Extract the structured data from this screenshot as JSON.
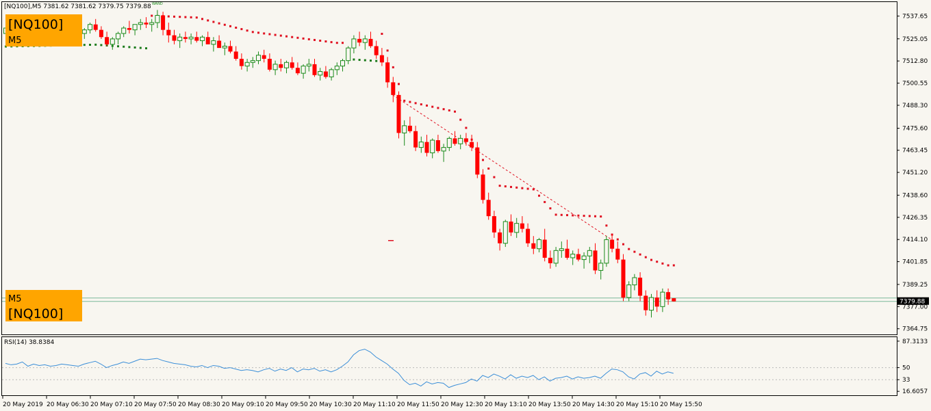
{
  "header": {
    "text": "[NQ100],M5  7381.62 7381.62 7379.75 7379.88",
    "badge": "WAND"
  },
  "labels": {
    "top_symbol": "[NQ100]",
    "top_timeframe": "M5",
    "bottom_timeframe": "M5",
    "bottom_symbol": "[NQ100]"
  },
  "colors": {
    "background": "#f8f6f0",
    "bull": "#1a8a1a",
    "bear": "#ff0000",
    "sar_bull": "#1a7a1a",
    "sar_bear": "#e01020",
    "rsi": "#3a8ed8",
    "label_bg": "#ffa500",
    "current_price_line": "#7ab89a"
  },
  "chart_data": [
    {
      "type": "candlestick",
      "symbol": "[NQ100]",
      "timeframe": "M5",
      "ohlc_header": {
        "open": 7381.62,
        "high": 7381.62,
        "low": 7379.75,
        "close": 7379.88
      },
      "current_price": 7379.88,
      "y_ticks": [
        7537.65,
        7525.05,
        7512.8,
        7500.55,
        7488.3,
        7475.6,
        7463.45,
        7451.2,
        7438.6,
        7426.35,
        7414.1,
        7401.85,
        7389.25,
        7377.0,
        7364.75
      ],
      "ylim": [
        7362,
        7545
      ],
      "x_tick_labels": [
        "20 May 2019",
        "20 May 06:30",
        "20 May 07:10",
        "20 May 07:50",
        "20 May 08:30",
        "20 May 09:10",
        "20 May 09:50",
        "20 May 10:30",
        "20 May 11:10",
        "20 May 11:50",
        "20 May 12:30",
        "20 May 13:10",
        "20 May 13:50",
        "20 May 14:30",
        "20 May 15:10",
        "20 May 15:50"
      ],
      "candles": [
        [
          7528,
          7533,
          7524,
          7531
        ],
        [
          7531,
          7534,
          7526,
          7529
        ],
        [
          7529,
          7532,
          7525,
          7530
        ],
        [
          7530,
          7533,
          7526,
          7528
        ],
        [
          7528,
          7531,
          7524,
          7530
        ],
        [
          7530,
          7534,
          7527,
          7532
        ],
        [
          7532,
          7535,
          7528,
          7529
        ],
        [
          7529,
          7532,
          7525,
          7531
        ],
        [
          7531,
          7534,
          7528,
          7533
        ],
        [
          7533,
          7535,
          7529,
          7530
        ],
        [
          7530,
          7532,
          7526,
          7528
        ],
        [
          7528,
          7531,
          7524,
          7529
        ],
        [
          7529,
          7532,
          7525,
          7527
        ],
        [
          7527,
          7530,
          7523,
          7528
        ],
        [
          7528,
          7531,
          7525,
          7530
        ],
        [
          7530,
          7534,
          7528,
          7533
        ],
        [
          7533,
          7536,
          7529,
          7530
        ],
        [
          7530,
          7532,
          7525,
          7526
        ],
        [
          7526,
          7529,
          7521,
          7522
        ],
        [
          7522,
          7526,
          7519,
          7525
        ],
        [
          7525,
          7529,
          7522,
          7528
        ],
        [
          7528,
          7532,
          7526,
          7531
        ],
        [
          7531,
          7535,
          7528,
          7530
        ],
        [
          7530,
          7533,
          7527,
          7533
        ],
        [
          7533,
          7536,
          7530,
          7534
        ],
        [
          7534,
          7537,
          7531,
          7533
        ],
        [
          7533,
          7536,
          7529,
          7534
        ],
        [
          7534,
          7541,
          7531,
          7538
        ],
        [
          7538,
          7540,
          7527,
          7530
        ],
        [
          7530,
          7534,
          7523,
          7527
        ],
        [
          7527,
          7530,
          7522,
          7524
        ],
        [
          7524,
          7528,
          7520,
          7526
        ],
        [
          7526,
          7529,
          7523,
          7525
        ],
        [
          7525,
          7528,
          7522,
          7526
        ],
        [
          7526,
          7529,
          7523,
          7524
        ],
        [
          7524,
          7527,
          7521,
          7526
        ],
        [
          7526,
          7529,
          7523,
          7522
        ],
        [
          7522,
          7526,
          7518,
          7524
        ],
        [
          7524,
          7527,
          7521,
          7520
        ],
        [
          7520,
          7523,
          7516,
          7521
        ],
        [
          7521,
          7524,
          7517,
          7518
        ],
        [
          7518,
          7521,
          7513,
          7514
        ],
        [
          7514,
          7517,
          7508,
          7510
        ],
        [
          7510,
          7514,
          7507,
          7512
        ],
        [
          7512,
          7515,
          7509,
          7513
        ],
        [
          7513,
          7518,
          7511,
          7516
        ],
        [
          7516,
          7519,
          7512,
          7514
        ],
        [
          7514,
          7517,
          7507,
          7508
        ],
        [
          7508,
          7513,
          7505,
          7511
        ],
        [
          7511,
          7514,
          7507,
          7509
        ],
        [
          7509,
          7513,
          7506,
          7512
        ],
        [
          7512,
          7515,
          7508,
          7509
        ],
        [
          7509,
          7512,
          7505,
          7506
        ],
        [
          7506,
          7511,
          7503,
          7510
        ],
        [
          7510,
          7514,
          7507,
          7511
        ],
        [
          7511,
          7514,
          7504,
          7505
        ],
        [
          7505,
          7509,
          7502,
          7507
        ],
        [
          7507,
          7510,
          7503,
          7504
        ],
        [
          7504,
          7509,
          7502,
          7508
        ],
        [
          7508,
          7512,
          7505,
          7510
        ],
        [
          7510,
          7514,
          7507,
          7513
        ],
        [
          7513,
          7521,
          7511,
          7520
        ],
        [
          7520,
          7527,
          7517,
          7525
        ],
        [
          7525,
          7529,
          7521,
          7523
        ],
        [
          7523,
          7527,
          7519,
          7525
        ],
        [
          7525,
          7529,
          7520,
          7521
        ],
        [
          7521,
          7524,
          7514,
          7516
        ],
        [
          7516,
          7520,
          7510,
          7512
        ],
        [
          7512,
          7515,
          7498,
          7501
        ],
        [
          7501,
          7504,
          7490,
          7494
        ],
        [
          7494,
          7496,
          7470,
          7473
        ],
        [
          7473,
          7480,
          7466,
          7477
        ],
        [
          7477,
          7482,
          7473,
          7474
        ],
        [
          7474,
          7477,
          7463,
          7465
        ],
        [
          7465,
          7471,
          7462,
          7468
        ],
        [
          7468,
          7472,
          7460,
          7462
        ],
        [
          7462,
          7470,
          7459,
          7469
        ],
        [
          7469,
          7472,
          7462,
          7463
        ],
        [
          7463,
          7467,
          7457,
          7465
        ],
        [
          7465,
          7471,
          7463,
          7470
        ],
        [
          7470,
          7474,
          7466,
          7467
        ],
        [
          7467,
          7472,
          7464,
          7470
        ],
        [
          7470,
          7473,
          7466,
          7468
        ],
        [
          7468,
          7472,
          7463,
          7465
        ],
        [
          7465,
          7468,
          7448,
          7450
        ],
        [
          7450,
          7453,
          7434,
          7436
        ],
        [
          7436,
          7440,
          7425,
          7427
        ],
        [
          7427,
          7430,
          7415,
          7418
        ],
        [
          7418,
          7420,
          7408,
          7412
        ],
        [
          7412,
          7425,
          7410,
          7424
        ],
        [
          7424,
          7428,
          7416,
          7418
        ],
        [
          7418,
          7426,
          7415,
          7423
        ],
        [
          7423,
          7427,
          7418,
          7420
        ],
        [
          7420,
          7423,
          7410,
          7412
        ],
        [
          7412,
          7416,
          7406,
          7409
        ],
        [
          7409,
          7415,
          7407,
          7414
        ],
        [
          7414,
          7420,
          7402,
          7404
        ],
        [
          7404,
          7408,
          7398,
          7401
        ],
        [
          7401,
          7410,
          7399,
          7408
        ],
        [
          7408,
          7413,
          7404,
          7409
        ],
        [
          7409,
          7414,
          7403,
          7404
        ],
        [
          7404,
          7408,
          7400,
          7406
        ],
        [
          7406,
          7409,
          7402,
          7403
        ],
        [
          7403,
          7407,
          7398,
          7405
        ],
        [
          7405,
          7410,
          7401,
          7408
        ],
        [
          7408,
          7412,
          7395,
          7397
        ],
        [
          7397,
          7403,
          7392,
          7401
        ],
        [
          7401,
          7416,
          7399,
          7414
        ],
        [
          7414,
          7417,
          7407,
          7409
        ],
        [
          7409,
          7413,
          7401,
          7403
        ],
        [
          7403,
          7406,
          7380,
          7382
        ],
        [
          7382,
          7391,
          7380,
          7389
        ],
        [
          7389,
          7395,
          7386,
          7393
        ],
        [
          7393,
          7396,
          7380,
          7383
        ],
        [
          7383,
          7386,
          7372,
          7375
        ],
        [
          7375,
          7384,
          7371,
          7382
        ],
        [
          7382,
          7386,
          7374,
          7377
        ],
        [
          7377,
          7387,
          7374,
          7385
        ],
        [
          7385,
          7387,
          7378,
          7381
        ],
        [
          7381.62,
          7381.62,
          7379.75,
          7379.88
        ]
      ],
      "parabolic_sar": [
        [
          0,
          7521,
          "bull"
        ],
        [
          16,
          7522,
          "bull"
        ],
        [
          25,
          7520,
          "bull"
        ],
        [
          26,
          7538,
          "bear"
        ],
        [
          34,
          7537,
          "bear"
        ],
        [
          44,
          7529,
          "bear"
        ],
        [
          59,
          7523,
          "bear"
        ],
        [
          61,
          7514,
          "bull"
        ],
        [
          66,
          7513,
          "bull"
        ],
        [
          67,
          7528,
          "bear"
        ],
        [
          71,
          7491,
          "bear"
        ],
        [
          80,
          7485,
          "bear"
        ],
        [
          82,
          7476,
          "bear"
        ],
        [
          84,
          7463,
          "bear"
        ],
        [
          88,
          7444,
          "bear"
        ],
        [
          94,
          7442,
          "bear"
        ],
        [
          98,
          7428,
          "bear"
        ],
        [
          106,
          7427,
          "bear"
        ],
        [
          108,
          7417,
          "bear"
        ],
        [
          111,
          7409,
          "bear"
        ],
        [
          115,
          7403,
          "bear"
        ],
        [
          118,
          7400,
          "bear"
        ]
      ],
      "trendline": {
        "from": [
          69,
          7494
        ],
        "to": [
          108,
          7414
        ]
      },
      "indicator": {
        "name": "RSI(14)",
        "value": 38.8384,
        "y_ticks": [
          87.3133,
          50,
          33,
          16.6057
        ],
        "levels": [
          50,
          33
        ],
        "ylim": [
          12,
          92
        ],
        "values": [
          56,
          54,
          55,
          58,
          52,
          55,
          53,
          54,
          52,
          53,
          55,
          54,
          53,
          52,
          55,
          57,
          59,
          55,
          50,
          53,
          55,
          58,
          56,
          59,
          62,
          61,
          62,
          63,
          60,
          58,
          56,
          55,
          54,
          52,
          51,
          53,
          50,
          53,
          52,
          49,
          50,
          48,
          46,
          47,
          46,
          44,
          47,
          49,
          45,
          48,
          46,
          50,
          44,
          48,
          47,
          49,
          45,
          47,
          44,
          47,
          52,
          58,
          68,
          74,
          76,
          72,
          65,
          60,
          55,
          48,
          42,
          32,
          26,
          28,
          24,
          30,
          27,
          29,
          28,
          22,
          25,
          27,
          29,
          34,
          31,
          39,
          36,
          41,
          38,
          34,
          40,
          35,
          38,
          36,
          39,
          33,
          37,
          31,
          35,
          36,
          38,
          34,
          37,
          35,
          36,
          38,
          35,
          42,
          48,
          47,
          44,
          37,
          34,
          41,
          43,
          38,
          45,
          41,
          44,
          42
        ]
      }
    }
  ]
}
